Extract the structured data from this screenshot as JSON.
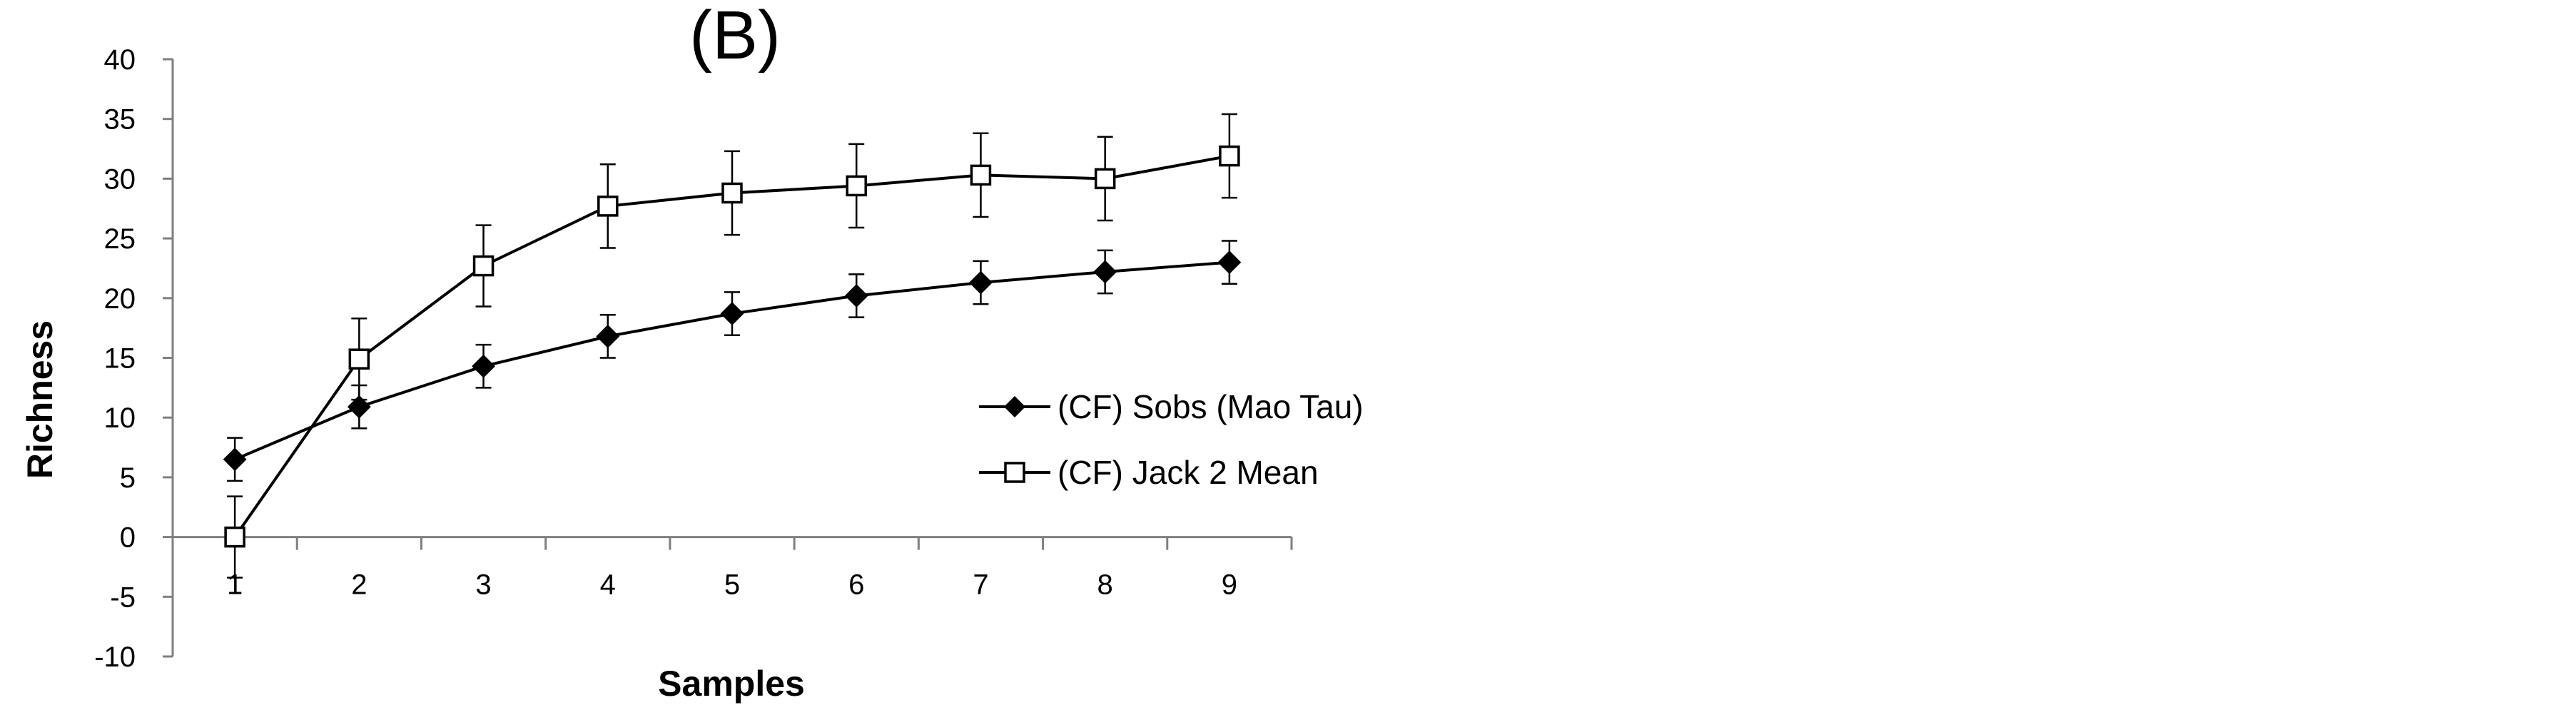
{
  "chart_data": {
    "type": "line",
    "title": "(B)",
    "xlabel": "Samples",
    "ylabel": "Richness",
    "x": [
      1,
      2,
      3,
      4,
      5,
      6,
      7,
      8,
      9
    ],
    "xlim": [
      0.5,
      9.5
    ],
    "ylim": [
      -10,
      40
    ],
    "yticks": [
      -10,
      -5,
      0,
      5,
      10,
      15,
      20,
      25,
      30,
      35,
      40
    ],
    "xticks": [
      "1",
      "2",
      "3",
      "4",
      "5",
      "6",
      "7",
      "8",
      "9"
    ],
    "grid": false,
    "legend_position": "center-right",
    "series": [
      {
        "name": "(CF) Sobs (Mao Tau)",
        "marker": "diamond-filled",
        "color": "#000000",
        "values": [
          6.5,
          10.9,
          14.3,
          16.8,
          18.7,
          20.2,
          21.3,
          22.2,
          23.0
        ],
        "errors": [
          1.8,
          1.8,
          1.8,
          1.8,
          1.8,
          1.8,
          1.8,
          1.8,
          1.8
        ]
      },
      {
        "name": "(CF) Jack 2 Mean",
        "marker": "square-open",
        "color": "#000000",
        "values": [
          0.0,
          14.9,
          22.7,
          27.7,
          28.8,
          29.4,
          30.3,
          30.0,
          31.9
        ],
        "errors": [
          3.4,
          3.4,
          3.4,
          3.5,
          3.5,
          3.5,
          3.5,
          3.5,
          3.5
        ]
      }
    ]
  }
}
